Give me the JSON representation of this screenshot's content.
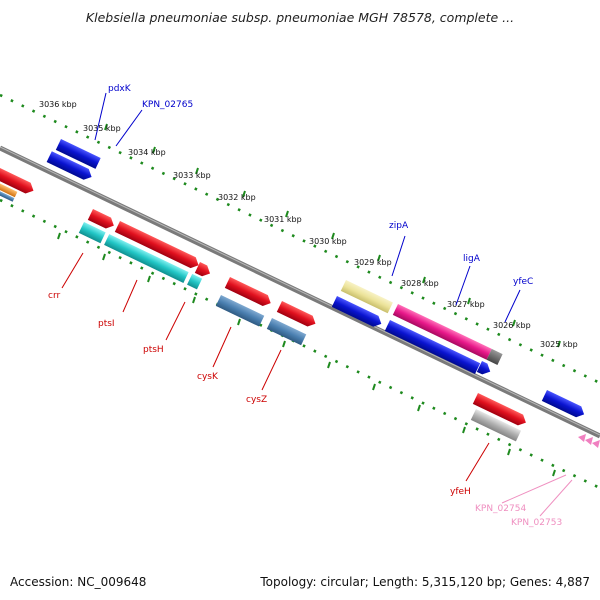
{
  "title": "Klebsiella pneumoniae subsp. pneumoniae MGH 78578, complete ...",
  "footer": {
    "accession": "Accession: NC_009648",
    "summary": "Topology: circular; Length: 5,315,120 bp; Genes: 4,887"
  },
  "kbp_markers": [
    "3036 kbp",
    "3035 kbp",
    "3034 kbp",
    "3033 kbp",
    "3032 kbp",
    "3031 kbp",
    "3030 kbp",
    "3029 kbp",
    "3028 kbp",
    "3027 kbp",
    "3026 kbp",
    "3025 kbp"
  ],
  "gene_labels": {
    "pdxK": "pdxK",
    "KPN_02765": "KPN_02765",
    "zipA": "zipA",
    "ligA": "ligA",
    "yfeC": "yfeC",
    "crr": "crr",
    "ptsI": "ptsI",
    "ptsH": "ptsH",
    "cysK": "cysK",
    "cysZ": "cysZ",
    "yfeH": "yfeH",
    "KPN_02754": "KPN_02754",
    "KPN_02753": "KPN_02753"
  },
  "colors": {
    "backbone": "#7a7a7a",
    "ticks": "#1e8a1e",
    "red": "#e0101e",
    "blue": "#0a14d0",
    "cyan": "#22c6c6",
    "steelblue": "#4a7fb0",
    "pale_yellow": "#ece39a",
    "magenta": "#e8188a",
    "gray": "#b0b0b0",
    "orange": "#ee8820",
    "pink": "#f080c0",
    "label_blue": "#0000cc",
    "label_red": "#cc0000",
    "label_pink": "#ef8fc0"
  }
}
